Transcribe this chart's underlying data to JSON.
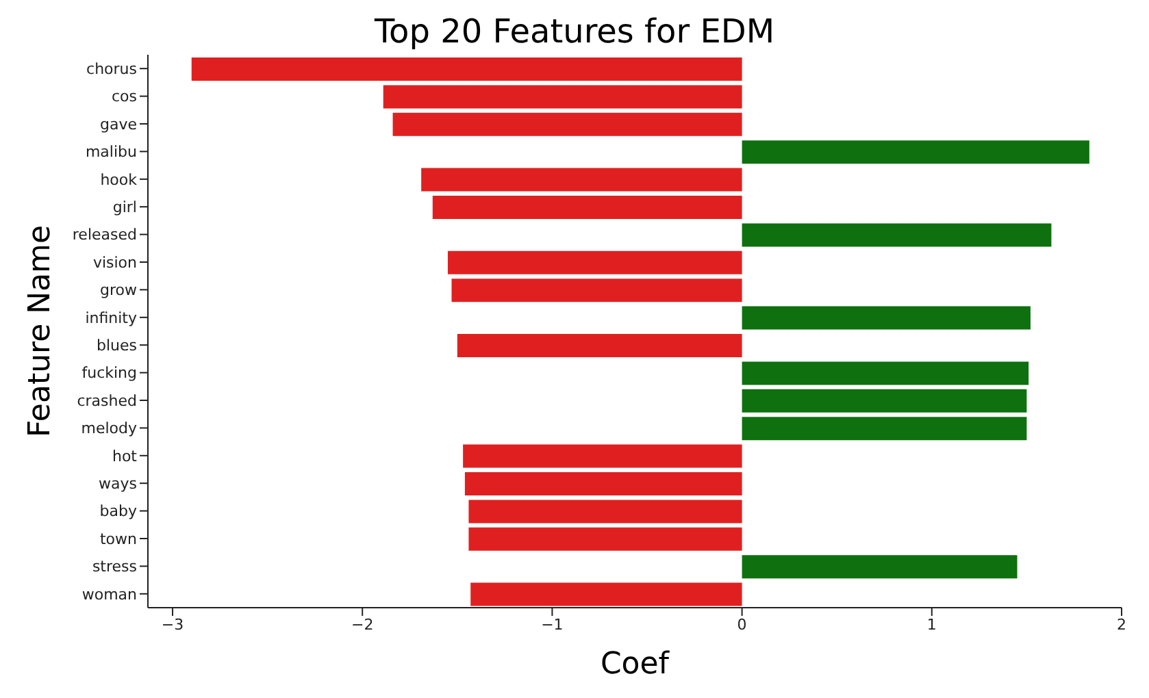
{
  "chart_data": {
    "type": "bar",
    "orientation": "horizontal",
    "title": "Top 20 Features for EDM",
    "xlabel": "Coef",
    "ylabel": "Feature Name",
    "categories": [
      "chorus",
      "cos",
      "gave",
      "malibu",
      "hook",
      "girl",
      "released",
      "vision",
      "grow",
      "infinity",
      "blues",
      "fucking",
      "crashed",
      "melody",
      "hot",
      "ways",
      "baby",
      "town",
      "stress",
      "woman"
    ],
    "values": [
      -2.9,
      -1.89,
      -1.84,
      1.83,
      -1.69,
      -1.63,
      1.63,
      -1.55,
      -1.53,
      1.52,
      -1.5,
      1.51,
      1.5,
      1.5,
      -1.47,
      -1.46,
      -1.44,
      -1.44,
      1.45,
      -1.43
    ],
    "colors": [
      "#e02020",
      "#e02020",
      "#e02020",
      "#0e700e",
      "#e02020",
      "#e02020",
      "#0e700e",
      "#e02020",
      "#e02020",
      "#0e700e",
      "#e02020",
      "#0e700e",
      "#0e700e",
      "#0e700e",
      "#e02020",
      "#e02020",
      "#e02020",
      "#e02020",
      "#0e700e",
      "#e02020"
    ],
    "xlim": [
      -3.13,
      2.0
    ],
    "xticks": [
      -3,
      -2,
      -1,
      0,
      1,
      2
    ],
    "grid": false,
    "legend": false
  }
}
